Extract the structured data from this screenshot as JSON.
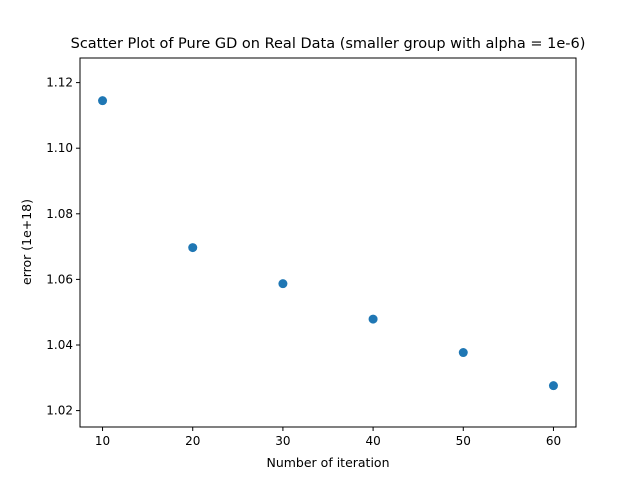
{
  "chart_data": {
    "type": "scatter",
    "title": "Scatter Plot of Pure GD on Real Data (smaller group with alpha = 1e-6)",
    "xlabel": "Number of iteration",
    "ylabel": "error (1e+18)",
    "x": [
      10,
      20,
      30,
      40,
      50,
      60
    ],
    "y": [
      1.1145,
      1.0697,
      1.0587,
      1.0479,
      1.0377,
      1.0276
    ],
    "xlim": [
      7.5,
      62.5
    ],
    "ylim": [
      1.015,
      1.1275
    ],
    "xticks": [
      "10",
      "20",
      "30",
      "40",
      "50",
      "60"
    ],
    "xtick_values": [
      10,
      20,
      30,
      40,
      50,
      60
    ],
    "yticks": [
      "1.02",
      "1.04",
      "1.06",
      "1.08",
      "1.10",
      "1.12"
    ],
    "ytick_values": [
      1.02,
      1.04,
      1.06,
      1.08,
      1.1,
      1.12
    ],
    "marker_color": "#1f77b4",
    "grid": false,
    "legend": "none"
  }
}
